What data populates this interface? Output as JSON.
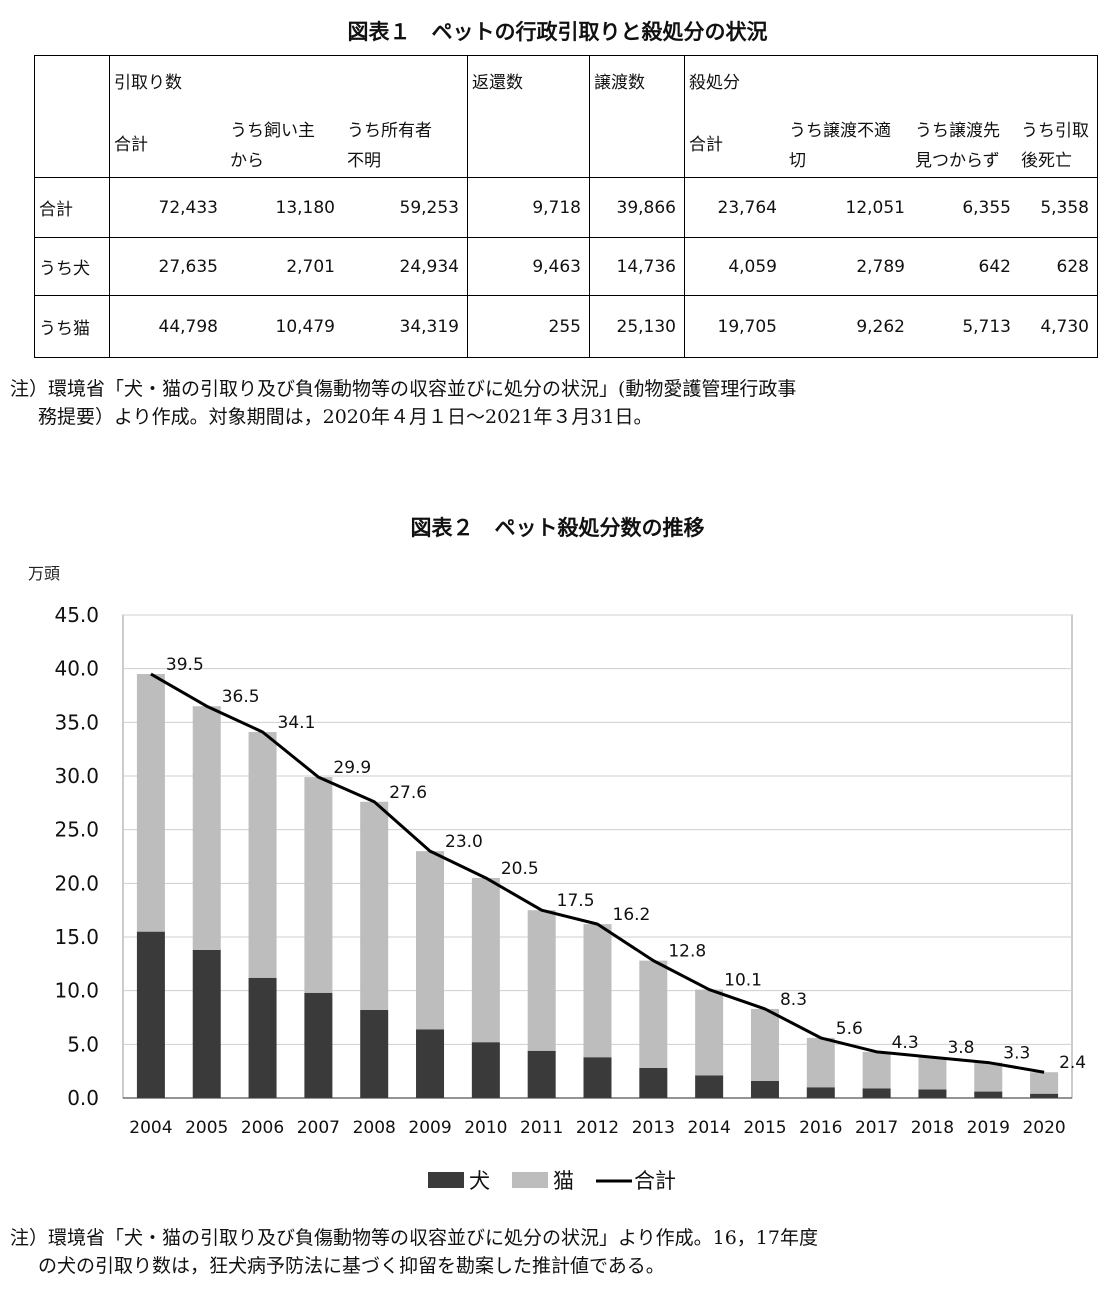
{
  "table": {
    "title": "図表１　ペットの行政引取りと殺処分の状況",
    "group_headers": {
      "hikitori": "引取り数",
      "henkan": "返還数",
      "joto": "譲渡数",
      "satsushobun": "殺処分"
    },
    "sub_headers": {
      "total": "合計",
      "kainushi_1": "うち飼い主",
      "kainushi_2": "から",
      "shoyusha_1": "うち所有者",
      "shoyusha_2": "不明",
      "total2": "合計",
      "futekisetsu_1": "うち譲渡不適",
      "futekisetsu_2": "切",
      "mitsukarazu_1": "うち譲渡先",
      "mitsukarazu_2": "見つからず",
      "shibou_1": "うち引取",
      "shibou_2": "後死亡"
    },
    "rows": [
      {
        "label": "合計",
        "values": [
          "72,433",
          "13,180",
          "59,253",
          "9,718",
          "39,866",
          "23,764",
          "12,051",
          "6,355",
          "5,358"
        ]
      },
      {
        "label": "うち犬",
        "values": [
          "27,635",
          "2,701",
          "24,934",
          "9,463",
          "14,736",
          "4,059",
          "2,789",
          "642",
          "628"
        ]
      },
      {
        "label": "うち猫",
        "values": [
          "44,798",
          "10,479",
          "34,319",
          "255",
          "25,130",
          "19,705",
          "9,262",
          "5,713",
          "4,730"
        ]
      }
    ],
    "note_line1": "注）環境省「犬・猫の引取り及び負傷動物等の収容並びに処分の状況」(動物愛護管理行政事",
    "note_line2": "務提要）より作成。対象期間は，2020年４月１日～2021年３月31日。"
  },
  "chart_data": {
    "type": "bar",
    "title": "図表２　ペット殺処分数の推移",
    "ylabel": "万頭",
    "xlabel": "",
    "ylim": [
      0,
      45
    ],
    "yticks": [
      "0.0",
      "5.0",
      "10.0",
      "15.0",
      "20.0",
      "25.0",
      "30.0",
      "35.0",
      "40.0",
      "45.0"
    ],
    "ytick_values": [
      0,
      5,
      10,
      15,
      20,
      25,
      30,
      35,
      40,
      45
    ],
    "stacked": true,
    "grid": true,
    "legend_position": "bottom",
    "categories": [
      "2004",
      "2005",
      "2006",
      "2007",
      "2008",
      "2009",
      "2010",
      "2011",
      "2012",
      "2013",
      "2014",
      "2015",
      "2016",
      "2017",
      "2018",
      "2019",
      "2020"
    ],
    "series": [
      {
        "name": "犬",
        "kind": "bar",
        "color": "#3a3a3a",
        "values": [
          15.5,
          13.8,
          11.2,
          9.8,
          8.2,
          6.4,
          5.2,
          4.4,
          3.8,
          2.8,
          2.1,
          1.6,
          1.0,
          0.9,
          0.8,
          0.6,
          0.4
        ]
      },
      {
        "name": "猫",
        "kind": "bar",
        "color": "#bdbdbd",
        "values": [
          24.0,
          22.7,
          22.9,
          20.1,
          19.4,
          16.6,
          15.3,
          13.1,
          12.4,
          10.0,
          8.0,
          6.7,
          4.6,
          3.4,
          3.0,
          2.7,
          2.0
        ]
      },
      {
        "name": "合計",
        "kind": "line",
        "color": "#000000",
        "values": [
          39.5,
          36.5,
          34.1,
          29.9,
          27.6,
          23.0,
          20.5,
          17.5,
          16.2,
          12.8,
          10.1,
          8.3,
          5.6,
          4.3,
          3.8,
          3.3,
          2.4
        ],
        "labels": [
          "39.5",
          "36.5",
          "34.1",
          "29.9",
          "27.6",
          "23.0",
          "20.5",
          "17.5",
          "16.2",
          "12.8",
          "10.1",
          "8.3",
          "5.6",
          "4.3",
          "3.8",
          "3.3",
          "2.4"
        ]
      }
    ],
    "note_line1": "注）環境省「犬・猫の引取り及び負傷動物等の収容並びに処分の状況」より作成。16，17年度",
    "note_line2": "の犬の引取り数は，狂犬病予防法に基づく抑留を勘案した推計値である。"
  }
}
